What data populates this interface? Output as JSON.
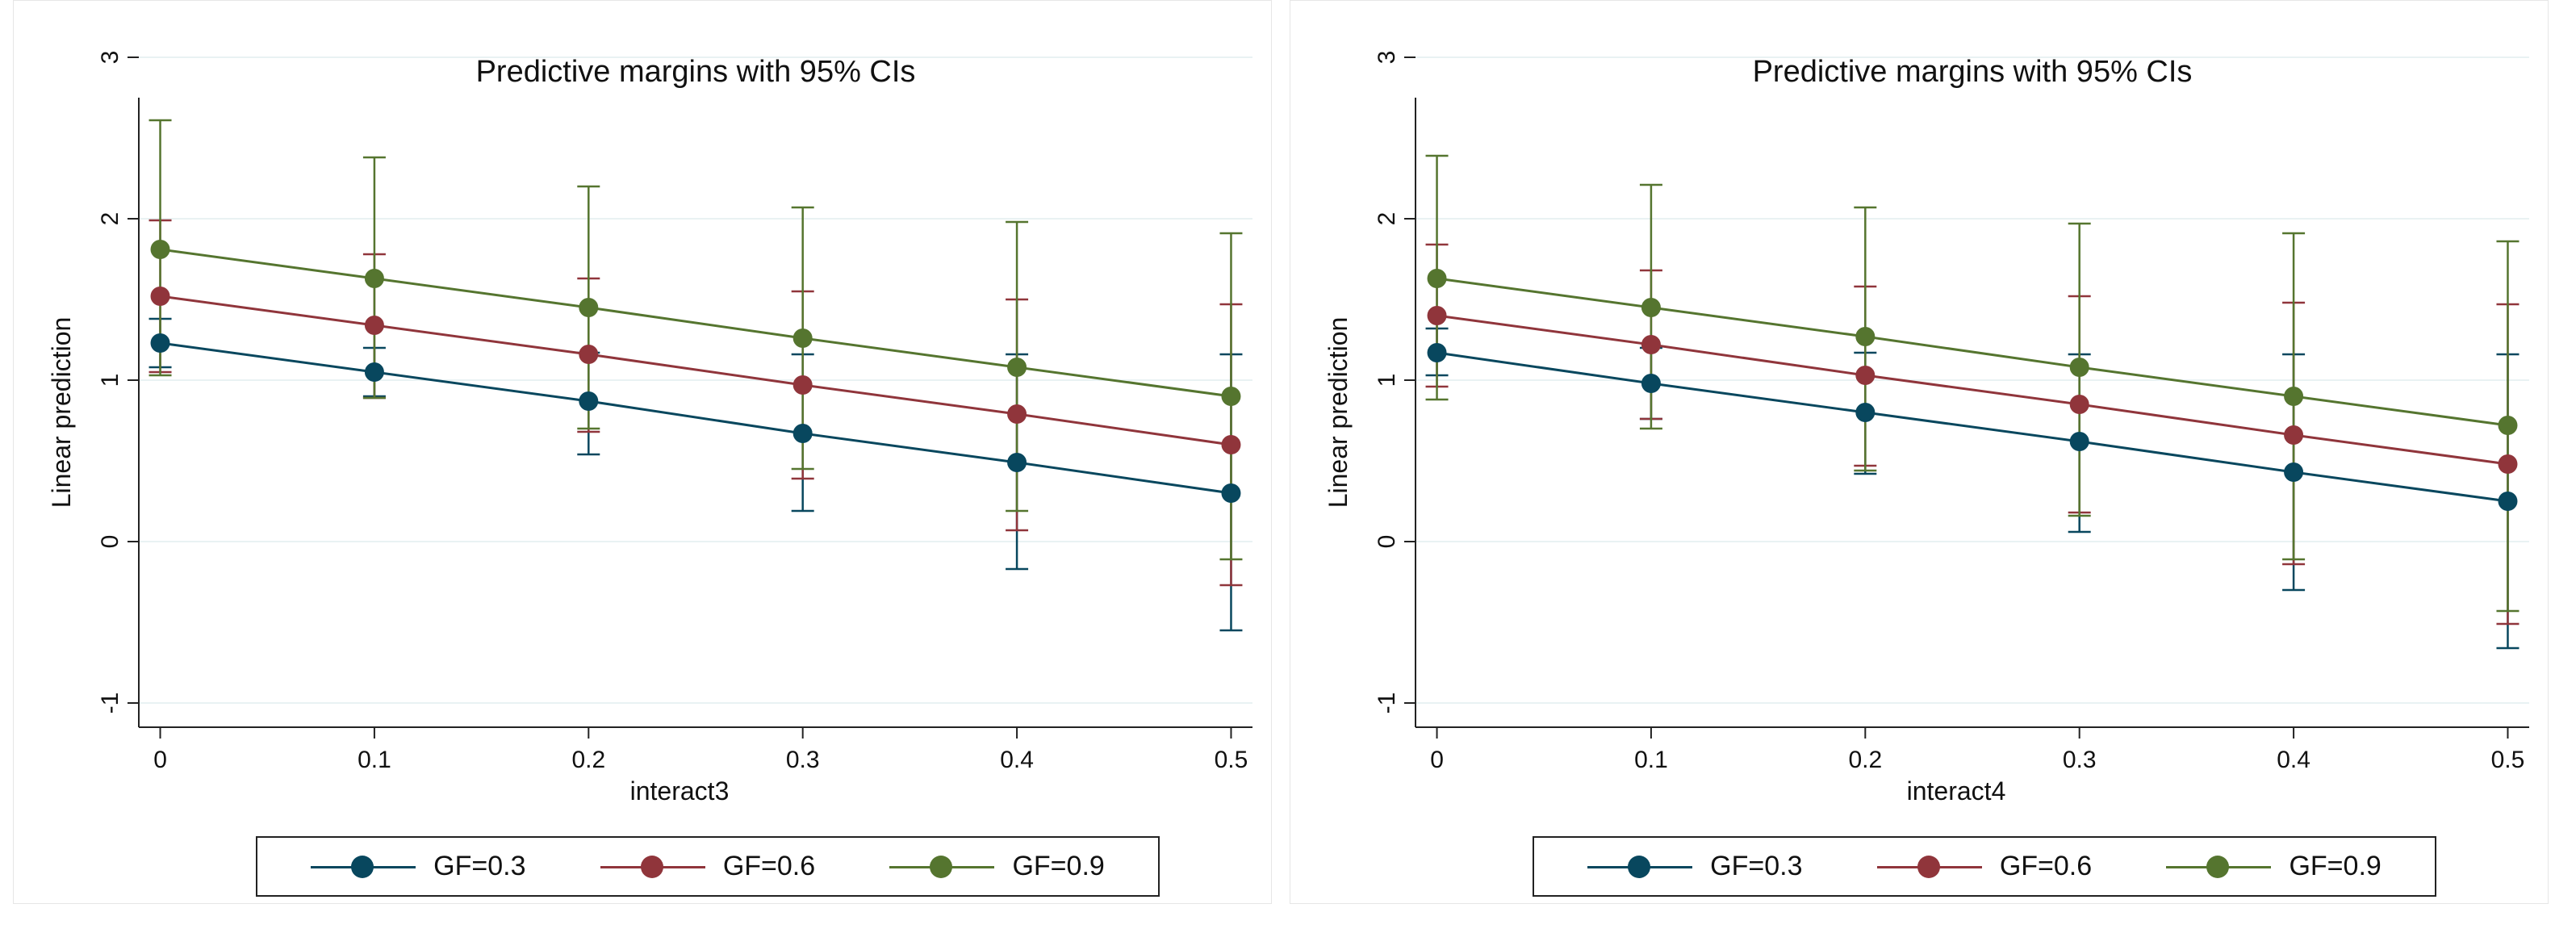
{
  "colors": {
    "gf03": "#08475e",
    "gf06": "#90353b",
    "gf09": "#55752f",
    "grid": "#e9f2f3",
    "axis": "#222222"
  },
  "chart_data": [
    {
      "type": "line",
      "title": "Predictive margins with 95% CIs",
      "xlabel": "interact3",
      "ylabel": "Linear prediction",
      "x": [
        0,
        0.1,
        0.2,
        0.3,
        0.4,
        0.5
      ],
      "x_tick_labels": [
        "0",
        "0.1",
        "0.2",
        "0.3",
        "0.4",
        "0.5"
      ],
      "y_ticks": [
        3,
        2,
        1,
        0,
        -1
      ],
      "y_tick_labels": [
        "3",
        "2",
        "1",
        "0",
        "-1"
      ],
      "xlim": [
        -0.01,
        0.51
      ],
      "ylim": [
        -1.15,
        3.05
      ],
      "series": [
        {
          "name": "GF=0.3",
          "color": "#08475e",
          "values": [
            1.23,
            1.05,
            0.87,
            0.67,
            0.49,
            0.3
          ],
          "ci_low": [
            1.08,
            0.9,
            0.54,
            0.19,
            -0.17,
            -0.55
          ],
          "ci_high": [
            1.38,
            1.2,
            1.17,
            1.16,
            1.16,
            1.16
          ]
        },
        {
          "name": "GF=0.6",
          "color": "#90353b",
          "values": [
            1.52,
            1.34,
            1.16,
            0.97,
            0.79,
            0.6
          ],
          "ci_low": [
            1.05,
            0.89,
            0.68,
            0.39,
            0.07,
            -0.27
          ],
          "ci_high": [
            1.99,
            1.78,
            1.63,
            1.55,
            1.5,
            1.47
          ]
        },
        {
          "name": "GF=0.9",
          "color": "#55752f",
          "values": [
            1.81,
            1.63,
            1.45,
            1.26,
            1.08,
            0.9
          ],
          "ci_low": [
            1.03,
            0.89,
            0.7,
            0.45,
            0.19,
            -0.11
          ],
          "ci_high": [
            2.61,
            2.38,
            2.2,
            2.07,
            1.98,
            1.91
          ]
        }
      ]
    },
    {
      "type": "line",
      "title": "Predictive margins with 95% CIs",
      "xlabel": "interact4",
      "ylabel": "Linear prediction",
      "x": [
        0,
        0.1,
        0.2,
        0.3,
        0.4,
        0.5
      ],
      "x_tick_labels": [
        "0",
        "0.1",
        "0.2",
        "0.3",
        "0.4",
        "0.5"
      ],
      "y_ticks": [
        3,
        2,
        1,
        0,
        -1
      ],
      "y_tick_labels": [
        "3",
        "2",
        "1",
        "0",
        "-1"
      ],
      "xlim": [
        -0.01,
        0.51
      ],
      "ylim": [
        -1.15,
        3.05
      ],
      "series": [
        {
          "name": "GF=0.3",
          "color": "#08475e",
          "values": [
            1.17,
            0.98,
            0.8,
            0.62,
            0.43,
            0.25
          ],
          "ci_low": [
            1.03,
            0.76,
            0.42,
            0.06,
            -0.3,
            -0.66
          ],
          "ci_high": [
            1.32,
            1.2,
            1.17,
            1.16,
            1.16,
            1.16
          ]
        },
        {
          "name": "GF=0.6",
          "color": "#90353b",
          "values": [
            1.4,
            1.22,
            1.03,
            0.85,
            0.66,
            0.48
          ],
          "ci_low": [
            0.96,
            0.76,
            0.47,
            0.18,
            -0.14,
            -0.51
          ],
          "ci_high": [
            1.84,
            1.68,
            1.58,
            1.52,
            1.48,
            1.47
          ]
        },
        {
          "name": "GF=0.9",
          "color": "#55752f",
          "values": [
            1.63,
            1.45,
            1.27,
            1.08,
            0.9,
            0.72
          ],
          "ci_low": [
            0.88,
            0.7,
            0.44,
            0.16,
            -0.11,
            -0.43
          ],
          "ci_high": [
            2.39,
            2.21,
            2.07,
            1.97,
            1.91,
            1.86
          ]
        }
      ]
    }
  ]
}
